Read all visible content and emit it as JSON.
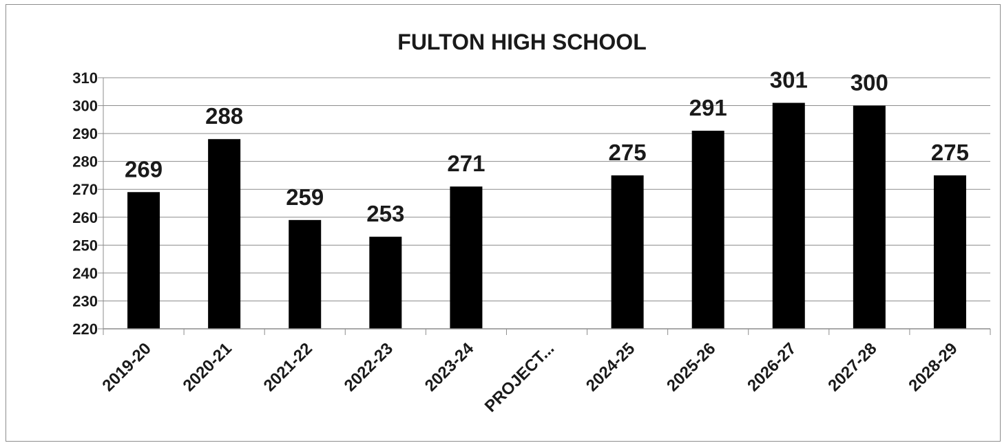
{
  "chart_data": {
    "type": "bar",
    "title": "FULTON HIGH SCHOOL",
    "xlabel": "",
    "ylabel": "",
    "categories": [
      "2019-20",
      "2020-21",
      "2021-22",
      "2022-23",
      "2023-24",
      "PROJECT...",
      "2024-25",
      "2025-26",
      "2026-27",
      "2027-28",
      "2028-29"
    ],
    "values": [
      269,
      288,
      259,
      253,
      271,
      null,
      275,
      291,
      301,
      300,
      275
    ],
    "data_labels": [
      "269",
      "288",
      "259",
      "253",
      "271",
      "",
      "275",
      "291",
      "301",
      "300",
      "275"
    ],
    "ylim": [
      220,
      310
    ],
    "yticks": [
      "220",
      "230",
      "240",
      "250",
      "260",
      "270",
      "280",
      "290",
      "300",
      "310"
    ],
    "grid": true,
    "legend": "none",
    "bar_color": "#000000",
    "grid_color": "#8c8c8c"
  }
}
